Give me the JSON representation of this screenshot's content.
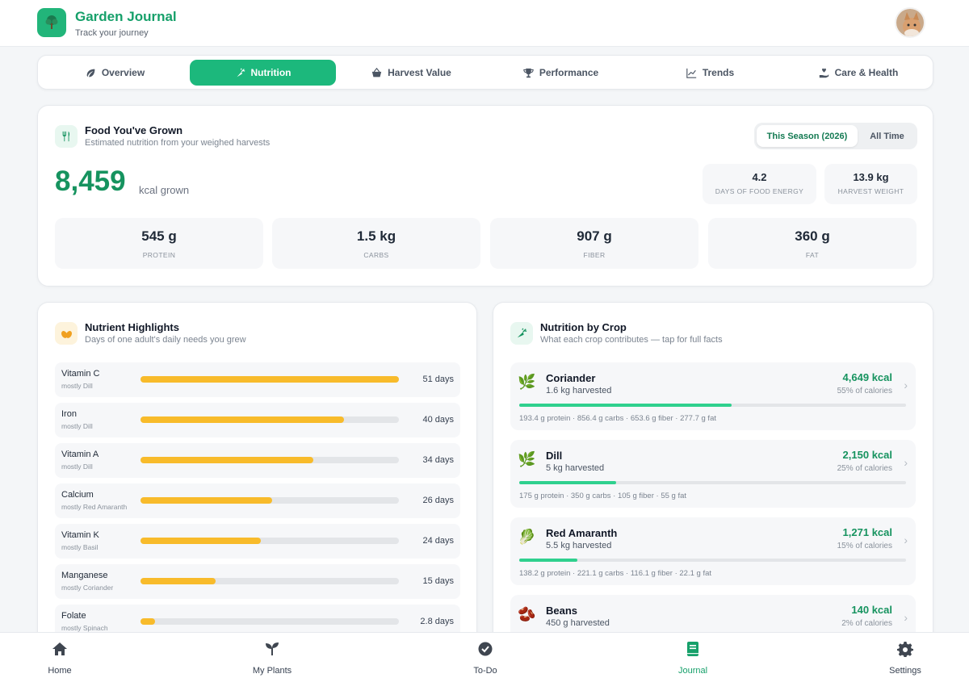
{
  "app": {
    "title": "Garden Journal",
    "subtitle": "Track your journey"
  },
  "tabs": [
    {
      "label": "Overview",
      "icon": "leaf-icon",
      "active": false
    },
    {
      "label": "Nutrition",
      "icon": "carrot-icon",
      "active": true
    },
    {
      "label": "Harvest Value",
      "icon": "basket-icon",
      "active": false
    },
    {
      "label": "Performance",
      "icon": "trophy-icon",
      "active": false
    },
    {
      "label": "Trends",
      "icon": "chart-line-icon",
      "active": false
    },
    {
      "label": "Care & Health",
      "icon": "hand-heart-icon",
      "active": false
    }
  ],
  "food": {
    "title": "Food You've Grown",
    "subtitle": "Estimated nutrition from your weighed harvests",
    "toggle": {
      "season": "This Season (2026)",
      "all": "All Time",
      "selected": "season"
    },
    "kcal_value": "8,459",
    "kcal_unit": "kcal grown",
    "stats": [
      {
        "value": "4.2",
        "label": "DAYS OF FOOD ENERGY"
      },
      {
        "value": "13.9 kg",
        "label": "HARVEST WEIGHT"
      }
    ],
    "macros": [
      {
        "value": "545 g",
        "label": "PROTEIN"
      },
      {
        "value": "1.5 kg",
        "label": "CARBS"
      },
      {
        "value": "907 g",
        "label": "FIBER"
      },
      {
        "value": "360 g",
        "label": "FAT"
      }
    ]
  },
  "highlights": {
    "title": "Nutrient Highlights",
    "subtitle": "Days of one adult's daily needs you grew",
    "rows": [
      {
        "name": "Vitamin C",
        "source": "mostly Dill",
        "days_label": "51 days",
        "fraction": 1.0
      },
      {
        "name": "Iron",
        "source": "mostly Dill",
        "days_label": "40 days",
        "fraction": 0.786
      },
      {
        "name": "Vitamin A",
        "source": "mostly Dill",
        "days_label": "34 days",
        "fraction": 0.67
      },
      {
        "name": "Calcium",
        "source": "mostly Red Amaranth",
        "days_label": "26 days",
        "fraction": 0.51
      },
      {
        "name": "Vitamin K",
        "source": "mostly Basil",
        "days_label": "24 days",
        "fraction": 0.465
      },
      {
        "name": "Manganese",
        "source": "mostly Coriander",
        "days_label": "15 days",
        "fraction": 0.29
      },
      {
        "name": "Folate",
        "source": "mostly Spinach",
        "days_label": "2.8 days",
        "fraction": 0.055
      }
    ]
  },
  "crops": {
    "title": "Nutrition by Crop",
    "subtitle": "What each crop contributes — tap for full facts",
    "rows": [
      {
        "name": "Coriander",
        "icon": "herb-icon",
        "emoji": "🌿",
        "harvested": "1.6 kg harvested",
        "kcal": "4,649 kcal",
        "pct": "55% of calories",
        "fraction": 0.55,
        "facts": "193.4 g protein · 856.4 g carbs · 653.6 g fiber · 277.7 g fat"
      },
      {
        "name": "Dill",
        "icon": "herb-icon",
        "emoji": "🌿",
        "harvested": "5 kg harvested",
        "kcal": "2,150 kcal",
        "pct": "25% of calories",
        "fraction": 0.25,
        "facts": "175 g protein · 350 g carbs · 105 g fiber · 55 g fat"
      },
      {
        "name": "Red Amaranth",
        "icon": "leafy-green-icon",
        "emoji": "🥬",
        "harvested": "5.5 kg harvested",
        "kcal": "1,271 kcal",
        "pct": "15% of calories",
        "fraction": 0.15,
        "facts": "138.2 g protein · 221.1 g carbs · 116.1 g fiber · 22.1 g fat"
      },
      {
        "name": "Beans",
        "icon": "beans-icon",
        "emoji": "🫘",
        "harvested": "450 g harvested",
        "kcal": "140 kcal",
        "pct": "2% of calories",
        "fraction": 0.02,
        "facts": ""
      }
    ]
  },
  "bottom_nav": [
    {
      "label": "Home",
      "icon": "home-icon",
      "active": false
    },
    {
      "label": "My Plants",
      "icon": "sprout-icon",
      "active": false
    },
    {
      "label": "To-Do",
      "icon": "check-circle-icon",
      "active": false
    },
    {
      "label": "Journal",
      "icon": "journal-icon",
      "active": true
    },
    {
      "label": "Settings",
      "icon": "gear-icon",
      "active": false
    }
  ],
  "colors": {
    "accent": "#1cb87c",
    "accent_text": "#16935f",
    "nutrient_bar": "#f8bb2b",
    "crop_bar": "#2fd08e"
  }
}
